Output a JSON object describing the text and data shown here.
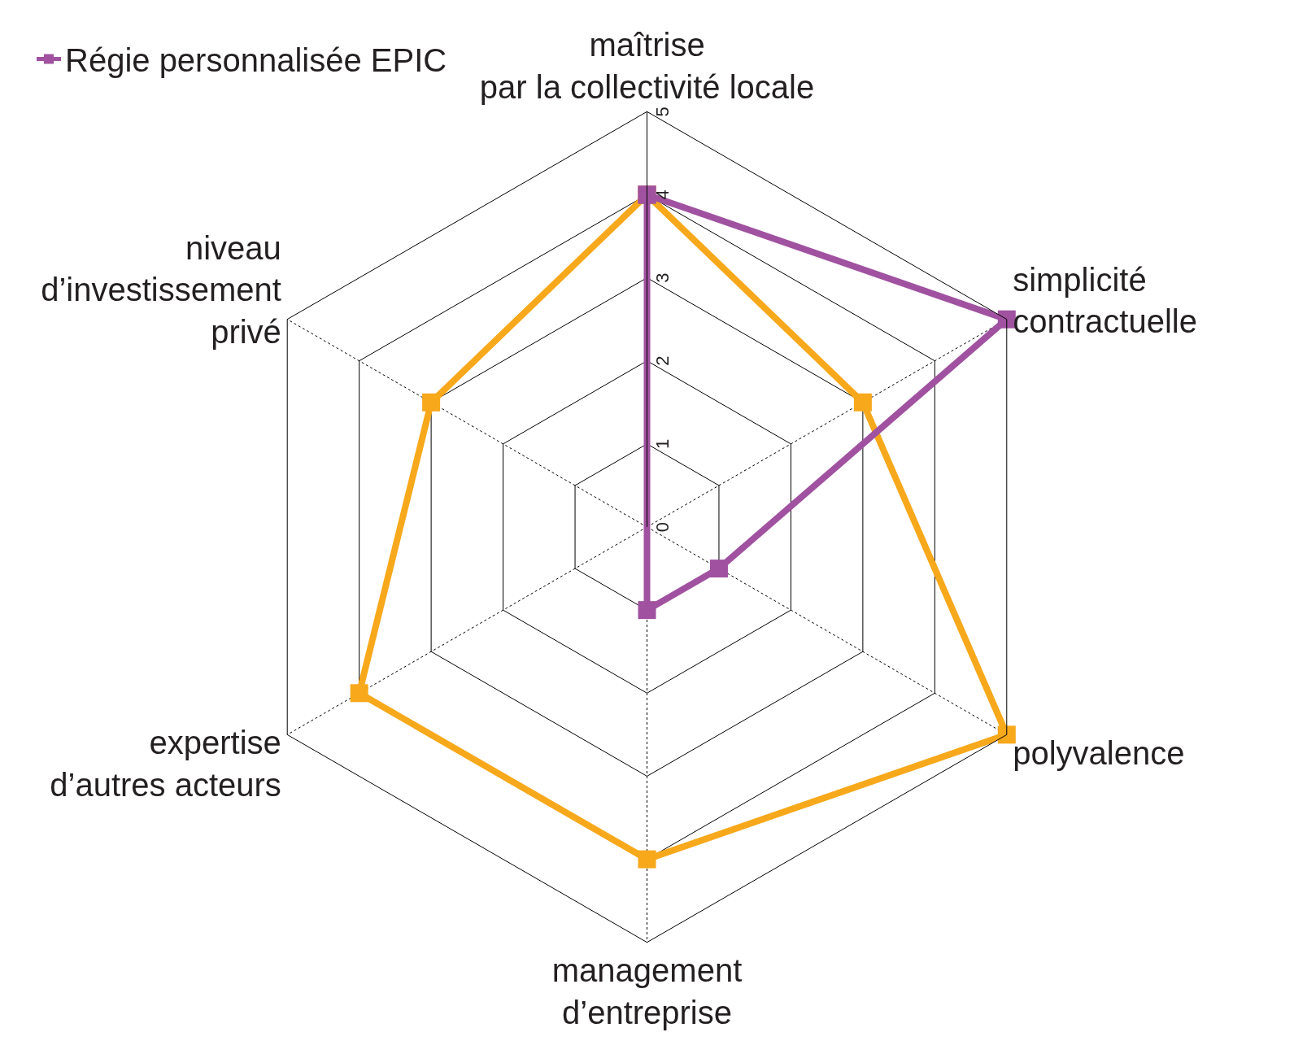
{
  "chart_data": {
    "type": "radar",
    "categories": [
      "maîtrise\npar la collectivité locale",
      "simplicité\ncontractuelle",
      "polyvalence",
      "management\nd’entreprise",
      "expertise\nd’autres acteurs",
      "niveau\nd’investissement\nprivé"
    ],
    "series": [
      {
        "color": "#f7a81b",
        "values": [
          4,
          3,
          5,
          4,
          4,
          3
        ]
      },
      {
        "name": "Régie personnalisée EPIC",
        "color": "#a052a0",
        "values": [
          4,
          5,
          1,
          1,
          0,
          0
        ]
      }
    ],
    "ylim": [
      0,
      5
    ],
    "yticks": [
      0,
      1,
      2,
      3,
      4,
      5
    ],
    "marker": "square",
    "line_style": "solid",
    "legend": "top left",
    "grid": true
  }
}
